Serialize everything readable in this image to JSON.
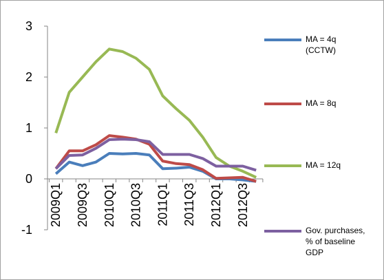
{
  "chart_data": {
    "type": "line",
    "categories": [
      "2009Q1",
      null,
      "2009Q3",
      null,
      "2010Q1",
      null,
      "2010Q3",
      null,
      "2011Q1",
      null,
      "2011Q3",
      null,
      "2012Q1",
      null,
      "2012Q3",
      null
    ],
    "series": [
      {
        "name": "MA = 4q\n(CCTW)",
        "color": "#4a7ebb",
        "values": [
          0.1,
          0.33,
          0.26,
          0.33,
          0.5,
          0.49,
          0.5,
          0.47,
          0.2,
          0.21,
          0.23,
          0.15,
          0.0,
          0.0,
          -0.02,
          -0.05
        ]
      },
      {
        "name": "MA = 8q",
        "color": "#be4b48",
        "values": [
          0.2,
          0.55,
          0.55,
          0.67,
          0.85,
          0.82,
          0.78,
          0.68,
          0.35,
          0.3,
          0.28,
          0.18,
          0.01,
          0.02,
          0.03,
          -0.05
        ]
      },
      {
        "name": "MA = 12q",
        "color": "#98b954",
        "values": [
          0.9,
          1.7,
          2.0,
          2.3,
          2.55,
          2.5,
          2.37,
          2.15,
          1.63,
          1.38,
          1.15,
          0.82,
          0.42,
          0.25,
          0.15,
          0.03
        ]
      },
      {
        "name": "Gov. purchases,\n% of baseline\nGDP",
        "color": "#7d60a0",
        "values": [
          0.2,
          0.46,
          0.47,
          0.6,
          0.77,
          0.78,
          0.77,
          0.73,
          0.48,
          0.48,
          0.48,
          0.4,
          0.25,
          0.25,
          0.25,
          0.17
        ]
      }
    ],
    "ylim": [
      -1,
      3
    ],
    "yticks": [
      -1,
      0,
      1,
      2,
      3
    ]
  }
}
